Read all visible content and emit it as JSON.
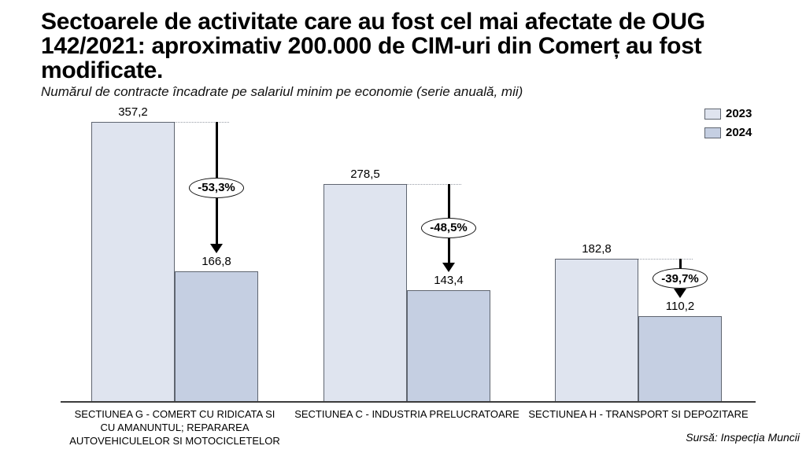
{
  "header": {
    "title_lines": [
      "Sectoarele de activitate care au fost cel mai afectate de OUG",
      "142/2021: aproximativ 200.000 de CIM-uri din Comerț au fost",
      "modificate."
    ],
    "subtitle": "Numărul de contracte încadrate pe salariul minim pe economie (serie anuală, mii)"
  },
  "legend": {
    "position": "top-right",
    "items": [
      {
        "label": "2023",
        "color": "#dfe4ef"
      },
      {
        "label": "2024",
        "color": "#c5cfe2"
      }
    ]
  },
  "source": "Sursă: Inspecția Muncii",
  "colors": {
    "bar_border": "#5f6570",
    "axis": "#3c3c3c",
    "arrow": "#000000",
    "badge_background": "#ffffff"
  },
  "chart_data": {
    "type": "bar",
    "title": "Sectoarele de activitate care au fost cel mai afectate de OUG 142/2021: aproximativ 200.000 de CIM-uri din Comerț au fost modificate.",
    "subtitle": "Numărul de contracte încadrate pe salariul minim pe economie (serie anuală, mii)",
    "xlabel": "",
    "ylabel": "",
    "ylim": [
      0,
      380
    ],
    "grid": false,
    "legend_position": "top-right",
    "series_names": [
      "2023",
      "2024"
    ],
    "categories": [
      "SECTIUNEA G - COMERT CU RIDICATA SI CU AMANUNTUL; REPARAREA AUTOVEHICULELOR SI MOTOCICLETELOR",
      "SECTIUNEA C - INDUSTRIA PRELUCRATOARE",
      "SECTIUNEA H - TRANSPORT SI DEPOZITARE"
    ],
    "groups": [
      {
        "category_lines": [
          "SECTIUNEA G - COMERT CU RIDICATA SI",
          "CU AMANUNTUL; REPARAREA",
          "AUTOVEHICULELOR SI MOTOCICLETELOR"
        ],
        "values": [
          357.2,
          166.8
        ],
        "value_labels": [
          "357,2",
          "166,8"
        ],
        "change": "-53,3%"
      },
      {
        "category_lines": [
          "SECTIUNEA C - INDUSTRIA PRELUCRATOARE"
        ],
        "values": [
          278.5,
          143.4
        ],
        "value_labels": [
          "278,5",
          "143,4"
        ],
        "change": "-48,5%"
      },
      {
        "category_lines": [
          "SECTIUNEA H - TRANSPORT SI DEPOZITARE"
        ],
        "values": [
          182.8,
          110.2
        ],
        "value_labels": [
          "182,8",
          "110,2"
        ],
        "change": "-39,7%"
      }
    ]
  }
}
